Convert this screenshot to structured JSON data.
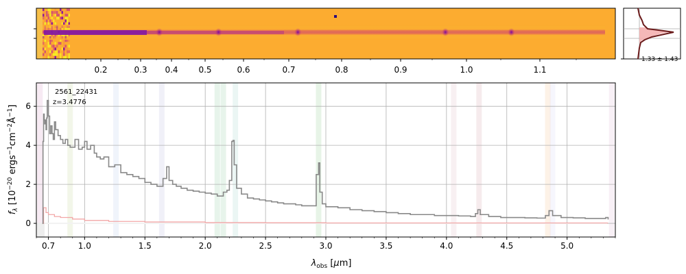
{
  "chart_data": [
    {
      "type": "heatmap",
      "panel": "2d-spectrum",
      "colormap": "plasma",
      "top_tick_labels": [
        "0.2",
        "0.3",
        "0.4",
        "0.5",
        "0.6",
        "0.7",
        "0.8",
        "0.9",
        "1.0",
        "1.1"
      ],
      "emission_blobs_um": [
        1.7,
        2.23,
        2.94,
        4.26,
        4.85
      ]
    },
    {
      "type": "line",
      "panel": "spatial-profile",
      "annotation": "1.33 ± 1.43"
    },
    {
      "type": "line",
      "panel": "1d-spectrum",
      "xlabel": "λ_obs [μm]",
      "ylabel": "f_λ [10^-20 ergs^-1cm^-2Å^-1]",
      "xlim": [
        0.6,
        5.4
      ],
      "ylim": [
        -0.7,
        7.2
      ],
      "x_tick_labels": [
        "0.7",
        "1.0",
        "1.5",
        "2.0",
        "2.5",
        "3.0",
        "3.5",
        "4.0",
        "4.5",
        "5.0"
      ],
      "x_tick_values": [
        0.7,
        1.0,
        1.5,
        2.0,
        2.5,
        3.0,
        3.5,
        4.0,
        4.5,
        5.0
      ],
      "y_ticks": [
        0,
        2,
        4,
        6
      ],
      "grid": true,
      "text_id": "2561_22431",
      "text_z": "z=3.4776",
      "series": [
        {
          "color": "#888888",
          "x": [
            0.65,
            0.655,
            0.66,
            0.665,
            0.67,
            0.675,
            0.68,
            0.685,
            0.69,
            0.7,
            0.71,
            0.72,
            0.73,
            0.74,
            0.75,
            0.76,
            0.78,
            0.8,
            0.82,
            0.84,
            0.86,
            0.88,
            0.9,
            0.92,
            0.95,
            0.98,
            1.0,
            1.02,
            1.05,
            1.08,
            1.1,
            1.13,
            1.16,
            1.2,
            1.25,
            1.3,
            1.35,
            1.4,
            1.45,
            1.5,
            1.55,
            1.6,
            1.65,
            1.68,
            1.7,
            1.73,
            1.76,
            1.8,
            1.85,
            1.9,
            1.95,
            2.0,
            2.05,
            2.1,
            2.15,
            2.18,
            2.2,
            2.22,
            2.23,
            2.24,
            2.26,
            2.3,
            2.35,
            2.4,
            2.45,
            2.5,
            2.55,
            2.6,
            2.65,
            2.7,
            2.75,
            2.8,
            2.85,
            2.9,
            2.92,
            2.94,
            2.95,
            2.97,
            3.0,
            3.1,
            3.2,
            3.3,
            3.4,
            3.5,
            3.6,
            3.7,
            3.8,
            3.9,
            4.0,
            4.1,
            4.2,
            4.24,
            4.26,
            4.28,
            4.35,
            4.45,
            4.55,
            4.65,
            4.75,
            4.82,
            4.85,
            4.88,
            4.95,
            5.05,
            5.15,
            5.25,
            5.32,
            5.34
          ],
          "y": [
            0.0,
            4.2,
            5.6,
            5.3,
            5.1,
            5.3,
            4.8,
            5.4,
            6.3,
            5.5,
            4.6,
            5.0,
            4.6,
            4.3,
            5.2,
            4.8,
            4.5,
            4.3,
            4.1,
            4.3,
            4.0,
            3.9,
            3.9,
            4.3,
            3.8,
            3.9,
            4.2,
            3.8,
            4.0,
            3.6,
            3.4,
            3.3,
            3.4,
            2.9,
            3.0,
            2.6,
            2.5,
            2.4,
            2.3,
            2.1,
            2.0,
            1.9,
            2.3,
            2.9,
            2.2,
            2.0,
            1.9,
            1.8,
            1.7,
            1.65,
            1.6,
            1.55,
            1.5,
            1.4,
            1.6,
            1.7,
            2.2,
            4.2,
            4.25,
            3.0,
            1.8,
            1.5,
            1.3,
            1.25,
            1.2,
            1.15,
            1.1,
            1.05,
            1.0,
            1.0,
            0.95,
            0.9,
            0.9,
            0.9,
            2.5,
            3.1,
            1.6,
            1.0,
            0.85,
            0.8,
            0.7,
            0.65,
            0.6,
            0.55,
            0.5,
            0.45,
            0.45,
            0.4,
            0.4,
            0.38,
            0.35,
            0.5,
            0.7,
            0.45,
            0.35,
            0.3,
            0.3,
            0.28,
            0.27,
            0.4,
            0.65,
            0.4,
            0.3,
            0.28,
            0.25,
            0.25,
            0.3,
            0.2
          ]
        },
        {
          "color": "#f2a6a6",
          "x": [
            0.65,
            0.66,
            0.68,
            0.7,
            0.75,
            0.8,
            0.9,
            1.0,
            1.2,
            1.5,
            2.0,
            2.5,
            3.0,
            4.0,
            5.0,
            5.34
          ],
          "y": [
            0.0,
            0.8,
            0.55,
            0.45,
            0.35,
            0.3,
            0.22,
            0.15,
            0.1,
            0.07,
            0.04,
            0.03,
            0.02,
            0.02,
            0.02,
            0.02
          ]
        }
      ],
      "line_bands": [
        {
          "x": 0.63,
          "color": "#c060a0"
        },
        {
          "x": 0.88,
          "color": "#99bb55"
        },
        {
          "x": 1.26,
          "color": "#88aadd"
        },
        {
          "x": 1.64,
          "color": "#8888cc"
        },
        {
          "x": 2.1,
          "color": "#44aa66"
        },
        {
          "x": 2.15,
          "color": "#44aa66"
        },
        {
          "x": 2.25,
          "color": "#66bbaa"
        },
        {
          "x": 2.94,
          "color": "#44aa44"
        },
        {
          "x": 4.06,
          "color": "#cc8899"
        },
        {
          "x": 4.27,
          "color": "#bb6677"
        },
        {
          "x": 4.84,
          "color": "#ee9944"
        },
        {
          "x": 4.88,
          "color": "#bbbbee"
        },
        {
          "x": 5.37,
          "color": "#cc88bb"
        }
      ]
    }
  ]
}
